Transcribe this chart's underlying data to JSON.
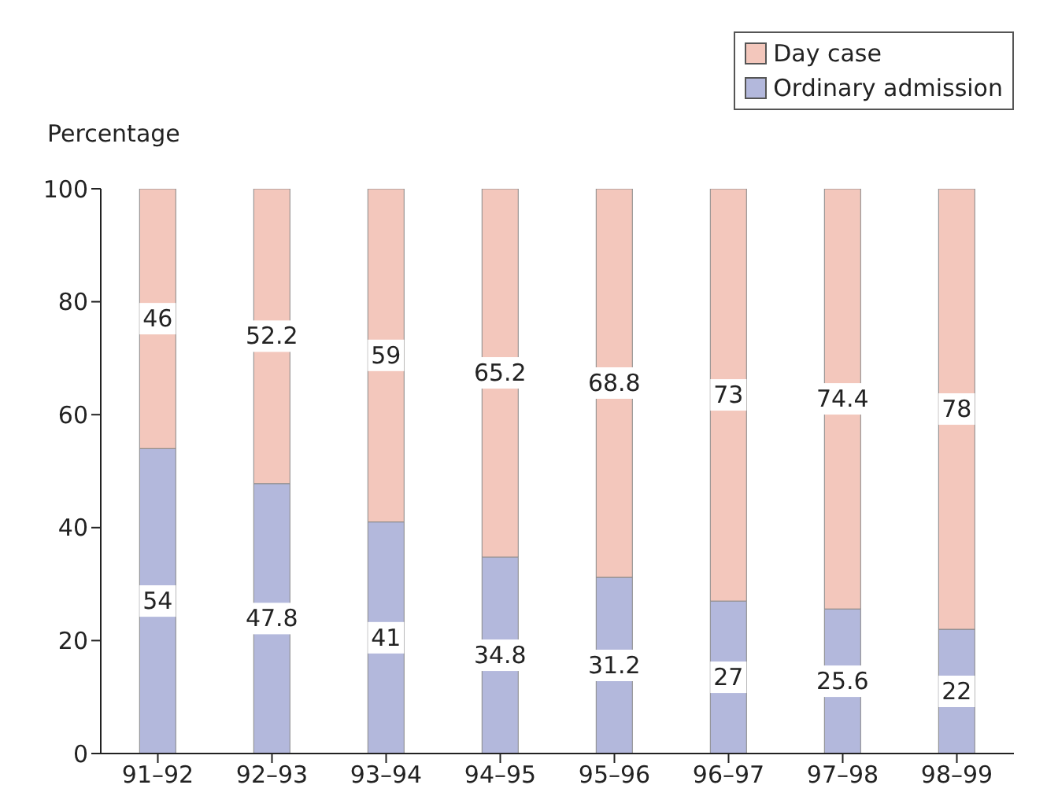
{
  "chart_data": {
    "type": "bar",
    "stacked": true,
    "ylabel": "Percentage",
    "categories": [
      "91–92",
      "92–93",
      "93–94",
      "94–95",
      "95–96",
      "96–97",
      "97–98",
      "98–99"
    ],
    "series": [
      {
        "name": "Ordinary admission",
        "color": "#b3b8dc",
        "values": [
          54,
          47.8,
          41,
          34.8,
          31.2,
          27,
          25.6,
          22
        ]
      },
      {
        "name": "Day case",
        "color": "#f3c7bc",
        "values": [
          46,
          52.2,
          59,
          65.2,
          68.8,
          73,
          74.4,
          78
        ]
      }
    ],
    "ylim": [
      0,
      100
    ],
    "yticks": [
      0,
      20,
      40,
      60,
      80,
      100
    ],
    "data_labels": true,
    "legend": "top right"
  }
}
